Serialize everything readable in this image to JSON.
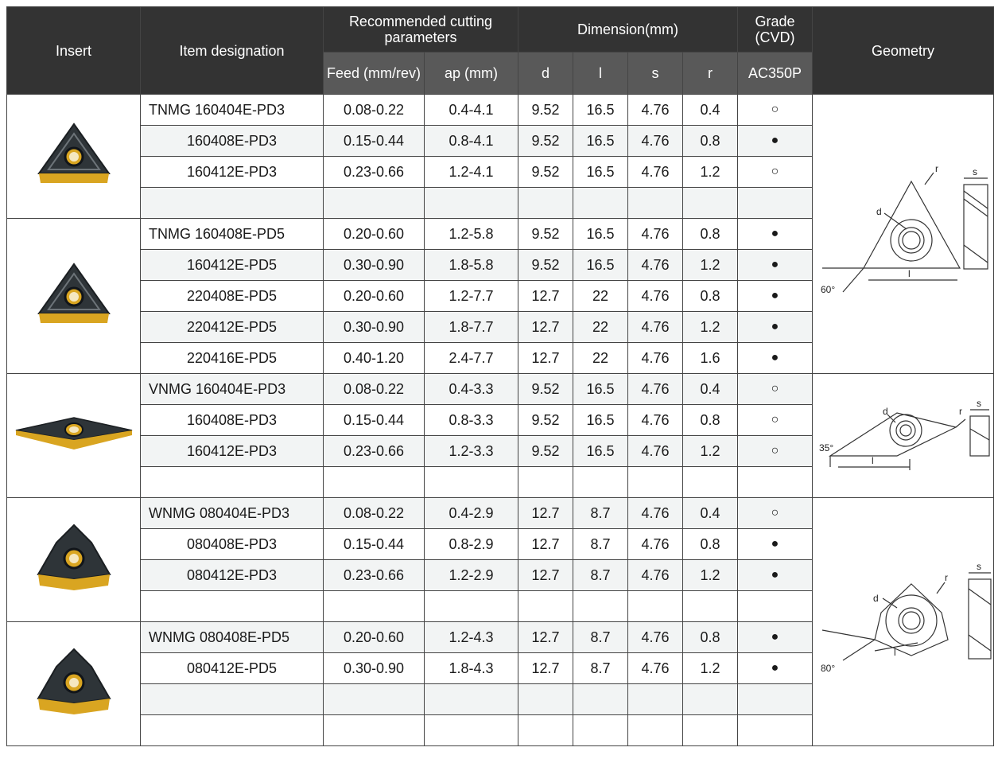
{
  "header": {
    "insert": "Insert",
    "item_designation": "Item designation",
    "recommended": "Recommended cutting parameters",
    "dimension": "Dimension(mm)",
    "grade": "Grade (CVD)",
    "geometry": "Geometry",
    "feed": "Feed (mm/rev)",
    "ap": "ap (mm)",
    "d": "d",
    "l": "l",
    "s": "s",
    "r": "r",
    "grade_code": "AC350P"
  },
  "groups": [
    {
      "insert_icon": "triangle-insert-pd3",
      "rows": [
        {
          "item": "TNMG 160404E-PD3",
          "feed": "0.08-0.22",
          "ap": "0.4-4.1",
          "d": "9.52",
          "l": "16.5",
          "s": "4.76",
          "r": "0.4",
          "grade": "○"
        },
        {
          "item": "160408E-PD3",
          "feed": "0.15-0.44",
          "ap": "0.8-4.1",
          "d": "9.52",
          "l": "16.5",
          "s": "4.76",
          "r": "0.8",
          "grade": "●"
        },
        {
          "item": "160412E-PD3",
          "feed": "0.23-0.66",
          "ap": "1.2-4.1",
          "d": "9.52",
          "l": "16.5",
          "s": "4.76",
          "r": "1.2",
          "grade": "○"
        },
        {
          "item": "",
          "feed": "",
          "ap": "",
          "d": "",
          "l": "",
          "s": "",
          "r": "",
          "grade": ""
        }
      ]
    },
    {
      "insert_icon": "triangle-insert-pd5",
      "rows": [
        {
          "item": "TNMG 160408E-PD5",
          "feed": "0.20-0.60",
          "ap": "1.2-5.8",
          "d": "9.52",
          "l": "16.5",
          "s": "4.76",
          "r": "0.8",
          "grade": "●"
        },
        {
          "item": "160412E-PD5",
          "feed": "0.30-0.90",
          "ap": "1.8-5.8",
          "d": "9.52",
          "l": "16.5",
          "s": "4.76",
          "r": "1.2",
          "grade": "●"
        },
        {
          "item": "220408E-PD5",
          "feed": "0.20-0.60",
          "ap": "1.2-7.7",
          "d": "12.7",
          "l": "22",
          "s": "4.76",
          "r": "0.8",
          "grade": "●"
        },
        {
          "item": "220412E-PD5",
          "feed": "0.30-0.90",
          "ap": "1.8-7.7",
          "d": "12.7",
          "l": "22",
          "s": "4.76",
          "r": "1.2",
          "grade": "●"
        },
        {
          "item": "220416E-PD5",
          "feed": "0.40-1.20",
          "ap": "2.4-7.7",
          "d": "12.7",
          "l": "22",
          "s": "4.76",
          "r": "1.6",
          "grade": "●"
        }
      ]
    },
    {
      "insert_icon": "rhombic-insert-pd3",
      "rows": [
        {
          "item": "VNMG 160404E-PD3",
          "feed": "0.08-0.22",
          "ap": "0.4-3.3",
          "d": "9.52",
          "l": "16.5",
          "s": "4.76",
          "r": "0.4",
          "grade": "○"
        },
        {
          "item": "160408E-PD3",
          "feed": "0.15-0.44",
          "ap": "0.8-3.3",
          "d": "9.52",
          "l": "16.5",
          "s": "4.76",
          "r": "0.8",
          "grade": "○"
        },
        {
          "item": "160412E-PD3",
          "feed": "0.23-0.66",
          "ap": "1.2-3.3",
          "d": "9.52",
          "l": "16.5",
          "s": "4.76",
          "r": "1.2",
          "grade": "○"
        },
        {
          "item": "",
          "feed": "",
          "ap": "",
          "d": "",
          "l": "",
          "s": "",
          "r": "",
          "grade": ""
        }
      ]
    },
    {
      "insert_icon": "trigon-insert-pd3",
      "rows": [
        {
          "item": "WNMG 080404E-PD3",
          "feed": "0.08-0.22",
          "ap": "0.4-2.9",
          "d": "12.7",
          "l": "8.7",
          "s": "4.76",
          "r": "0.4",
          "grade": "○"
        },
        {
          "item": "080408E-PD3",
          "feed": "0.15-0.44",
          "ap": "0.8-2.9",
          "d": "12.7",
          "l": "8.7",
          "s": "4.76",
          "r": "0.8",
          "grade": "●"
        },
        {
          "item": "080412E-PD3",
          "feed": "0.23-0.66",
          "ap": "1.2-2.9",
          "d": "12.7",
          "l": "8.7",
          "s": "4.76",
          "r": "1.2",
          "grade": "●"
        },
        {
          "item": "",
          "feed": "",
          "ap": "",
          "d": "",
          "l": "",
          "s": "",
          "r": "",
          "grade": ""
        }
      ]
    },
    {
      "insert_icon": "trigon-insert-pd5",
      "rows": [
        {
          "item": "WNMG 080408E-PD5",
          "feed": "0.20-0.60",
          "ap": "1.2-4.3",
          "d": "12.7",
          "l": "8.7",
          "s": "4.76",
          "r": "0.8",
          "grade": "●"
        },
        {
          "item": "080412E-PD5",
          "feed": "0.30-0.90",
          "ap": "1.8-4.3",
          "d": "12.7",
          "l": "8.7",
          "s": "4.76",
          "r": "1.2",
          "grade": "●"
        },
        {
          "item": "",
          "feed": "",
          "ap": "",
          "d": "",
          "l": "",
          "s": "",
          "r": "",
          "grade": ""
        },
        {
          "item": "",
          "feed": "",
          "ap": "",
          "d": "",
          "l": "",
          "s": "",
          "r": "",
          "grade": ""
        }
      ]
    }
  ],
  "geometry_figures": [
    {
      "icon": "triangle-geometry-diagram",
      "labels": {
        "s": "s",
        "r": "r",
        "d": "d",
        "l": "l",
        "angle": "60°"
      }
    },
    {
      "icon": "rhombic-geometry-diagram",
      "labels": {
        "s": "s",
        "r": "r",
        "d": "d",
        "l": "l",
        "angle": "35°"
      }
    },
    {
      "icon": "trigon-geometry-diagram",
      "labels": {
        "s": "s",
        "r": "r",
        "d": "d",
        "l": "l",
        "angle": "80°"
      }
    }
  ],
  "colors": {
    "header_dark": "#333333",
    "header_sub": "#595959",
    "row_shade": "#f2f4f4",
    "carbide_gold": "#d9a521",
    "coating_dark": "#2e3438"
  }
}
